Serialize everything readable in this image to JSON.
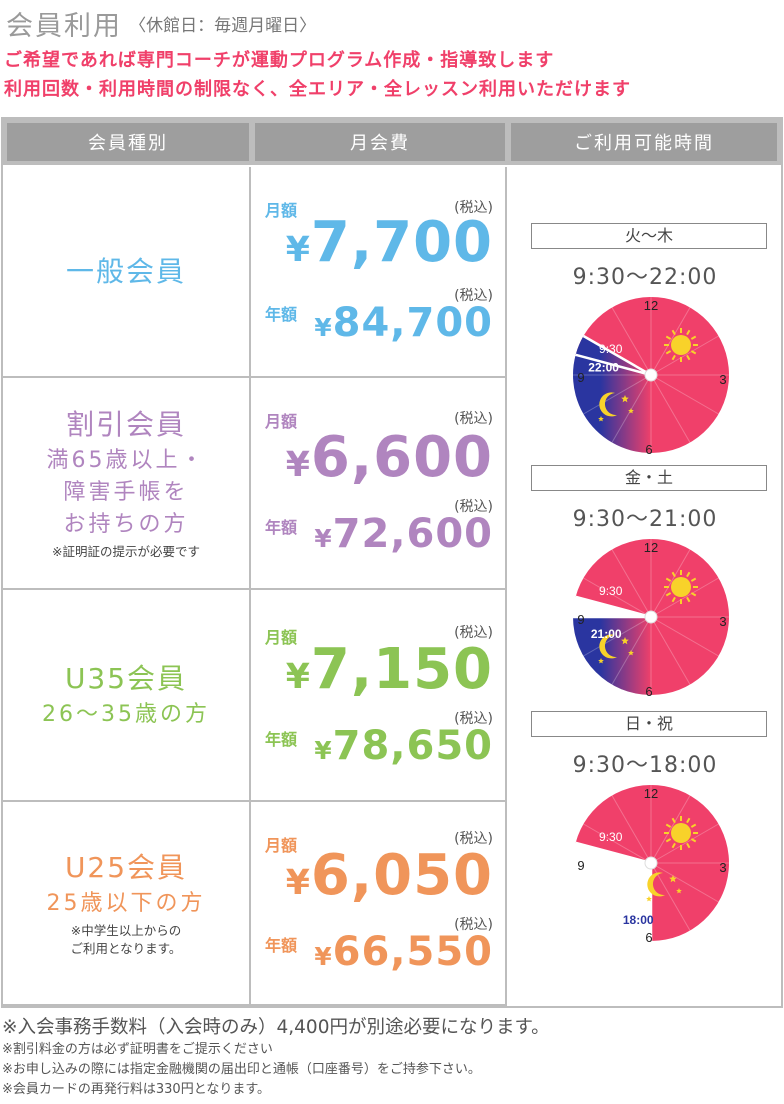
{
  "header": {
    "title": "会員利用",
    "closed_note": "〈休館日：毎週月曜日〉"
  },
  "intro": {
    "line1": "ご希望であれば専門コーチが運動プログラム作成・指導致します",
    "line2": "利用回数・利用時間の制限なく、全エリア・全レッスン利用いただけます"
  },
  "table_header": {
    "category": "会員種別",
    "fee": "月会費",
    "hours": "ご利用可能時間"
  },
  "labels": {
    "monthly": "月額",
    "yearly": "年額",
    "tax_included": "(税込)"
  },
  "colors": {
    "general": "#5fb8e8",
    "discount": "#b085bf",
    "u35": "#8cc454",
    "u25": "#f0955a",
    "intro": "#f0406a",
    "day": "#f0406a",
    "night": "#2a35a0",
    "sun": "#f8d22a"
  },
  "plans": [
    {
      "name": "一般会員",
      "sub": [],
      "note": [],
      "monthly": "7,700",
      "yearly": "84,700",
      "yen": "¥"
    },
    {
      "name": "割引会員",
      "sub": [
        "満65歳以上・",
        "障害手帳を",
        "お持ちの方"
      ],
      "note": [
        "※証明証の提示が必要です"
      ],
      "monthly": "6,600",
      "yearly": "72,600",
      "yen": "¥"
    },
    {
      "name": "U35会員",
      "sub": [
        "26～35歳の方"
      ],
      "note": [],
      "monthly": "7,150",
      "yearly": "78,650",
      "yen": "¥"
    },
    {
      "name": "U25会員",
      "sub": [
        "25歳以下の方"
      ],
      "note": [
        "※中学生以上からの",
        "ご利用となります。"
      ],
      "monthly": "6,050",
      "yearly": "66,550",
      "yen": "¥"
    }
  ],
  "schedules": [
    {
      "days": "火～木",
      "hours": "9:30～22:00",
      "open": 9.5,
      "close": 22,
      "open_label": "9:30",
      "close_label": "22:00"
    },
    {
      "days": "金・土",
      "hours": "9:30～21:00",
      "open": 9.5,
      "close": 21,
      "open_label": "9:30",
      "close_label": "21:00"
    },
    {
      "days": "日・祝",
      "hours": "9:30～18:00",
      "open": 9.5,
      "close": 18,
      "open_label": "9:30",
      "close_label": "18:00"
    }
  ],
  "clock_numbers": [
    "12",
    "3",
    "6",
    "9"
  ],
  "footer": {
    "main": "※入会事務手数料（入会時のみ）4,400円が別途必要になります。",
    "notes": [
      "※割引料金の方は必ず証明書をご提示ください",
      "※お申し込みの際には指定金融機関の届出印と通帳（口座番号）をご持参下さい。",
      "※会員カードの再発行料は330円となります。"
    ]
  }
}
